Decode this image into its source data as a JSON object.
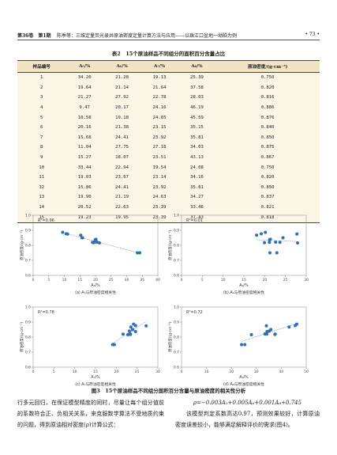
{
  "header": {
    "left": "第36卷　第1期",
    "middle": "陈季等：三维定量荧光录井原油密度定量计算方法与应用——以珠江口盆地一坳陷为例",
    "page": "• 73 •"
  },
  "table": {
    "title": "表2　15个原油样品不同组分的面积百分含量占比",
    "headers": [
      "样品编号",
      "A₅/%",
      "A₆/%",
      "A₇/%",
      "A₈/%",
      "原油密度/(g·cm⁻³)"
    ],
    "rows": [
      [
        "1",
        "34.20",
        "21.28",
        "19.13",
        "25.39",
        "0.750"
      ],
      [
        "2",
        "19.64",
        "21.14",
        "21.64",
        "37.58",
        "0.820"
      ],
      [
        "3",
        "21.27",
        "27.92",
        "22.78",
        "28.03",
        "0.816"
      ],
      [
        "4",
        "9.47",
        "20.17",
        "24.16",
        "46.19",
        "0.886"
      ],
      [
        "5",
        "10.58",
        "19.18",
        "24.65",
        "45.59",
        "0.876"
      ],
      [
        "6",
        "20.16",
        "21.38",
        "23.15",
        "35.15",
        "0.840"
      ],
      [
        "7",
        "15.68",
        "24.41",
        "23.92",
        "35.81",
        "0.850"
      ],
      [
        "8",
        "11.04",
        "27.75",
        "27.18",
        "34.03",
        "0.875"
      ],
      [
        "9",
        "15.27",
        "18.07",
        "23.51",
        "43.13",
        "0.867"
      ],
      [
        "10",
        "33.44",
        "22.94",
        "19.54",
        "24.08",
        "0.750"
      ],
      [
        "11",
        "19.03",
        "23.67",
        "23.14",
        "34.16",
        "0.820"
      ],
      [
        "12",
        "15.86",
        "24.41",
        "23.92",
        "35.81",
        "0.850"
      ],
      [
        "13",
        "19.90",
        "21.19",
        "24.63",
        "34.27",
        "0.837"
      ],
      [
        "14",
        "20.52",
        "22.63",
        "23.39",
        "33.46",
        "0.821"
      ],
      [
        "15",
        "19.23",
        "19.95",
        "23.39",
        "37.43",
        "0.818"
      ]
    ]
  },
  "chart_data": [
    {
      "type": "scatter",
      "annotation": "R²=0.96",
      "x_label": "A₅/%",
      "y_label": "原油密度/(g·cm⁻³)",
      "caption": "(a) A₅与原油密度相关性",
      "x": [
        34.2,
        19.64,
        21.27,
        9.47,
        10.58,
        20.16,
        15.68,
        11.04,
        15.27,
        33.44,
        19.03,
        15.86,
        19.9,
        20.52,
        19.23
      ],
      "values": [
        0.75,
        0.82,
        0.816,
        0.886,
        0.876,
        0.84,
        0.85,
        0.875,
        0.867,
        0.75,
        0.82,
        0.85,
        0.837,
        0.821,
        0.818
      ],
      "xlim": [
        0,
        40
      ],
      "xticks": [
        0,
        5,
        10,
        15,
        20,
        25,
        30,
        35,
        40
      ],
      "ylim": [
        0.6,
        1
      ],
      "yticks": [
        0.6,
        0.7,
        0.8,
        0.9,
        {
          "value": 1,
          "label": "1.0"
        }
      ],
      "color": "#2f6fb3",
      "trendline": true
    },
    {
      "type": "scatter",
      "annotation": "R²=0.01",
      "x_label": "A₆/%",
      "y_label": "原油密度/(g·cm⁻³)",
      "caption": "(b) A₆与原油密度相关性",
      "x": [
        21.28,
        21.14,
        27.92,
        20.17,
        19.18,
        21.38,
        24.41,
        27.75,
        18.07,
        22.94,
        23.67,
        24.41,
        21.19,
        22.63,
        19.95
      ],
      "values": [
        0.75,
        0.82,
        0.816,
        0.886,
        0.876,
        0.84,
        0.85,
        0.875,
        0.867,
        0.75,
        0.82,
        0.85,
        0.837,
        0.821,
        0.818
      ],
      "xlim": [
        0,
        30
      ],
      "xticks": [
        0,
        5,
        10,
        15,
        20,
        25,
        30
      ],
      "ylim": [
        0.6,
        1
      ],
      "yticks": [
        0.6,
        0.7,
        0.8,
        0.9,
        {
          "value": 1,
          "label": "1.0"
        }
      ],
      "color": "#2f6fb3",
      "trendline": true
    },
    {
      "type": "scatter",
      "annotation": "R²=0.78",
      "x_label": "A₇/%",
      "y_label": "原油密度/(g·cm⁻³)",
      "caption": "(c) A₇与原油密度相关性",
      "x": [
        19.13,
        21.64,
        22.78,
        24.16,
        24.65,
        23.15,
        23.92,
        27.18,
        23.51,
        19.54,
        23.14,
        23.92,
        24.63,
        23.39,
        23.39
      ],
      "values": [
        0.75,
        0.82,
        0.816,
        0.886,
        0.876,
        0.84,
        0.85,
        0.875,
        0.867,
        0.75,
        0.82,
        0.85,
        0.837,
        0.821,
        0.818
      ],
      "xlim": [
        0,
        30
      ],
      "xticks": [
        0,
        5,
        10,
        15,
        20,
        25,
        30
      ],
      "ylim": [
        0.6,
        1
      ],
      "yticks": [
        0.6,
        0.7,
        0.8,
        0.9,
        {
          "value": 1,
          "label": "1.0"
        }
      ],
      "color": "#2f6fb3",
      "trendline": true
    },
    {
      "type": "scatter",
      "annotation": "R²=0.72",
      "x_label": "A₈/%",
      "y_label": "原油密度/(g·cm⁻³)",
      "caption": "(d) A₈与原油密度相关性",
      "x": [
        25.39,
        37.58,
        28.03,
        46.19,
        45.59,
        35.15,
        35.81,
        34.03,
        43.13,
        24.08,
        34.16,
        35.81,
        34.27,
        33.46,
        37.43
      ],
      "values": [
        0.75,
        0.82,
        0.816,
        0.886,
        0.876,
        0.84,
        0.85,
        0.875,
        0.867,
        0.75,
        0.82,
        0.85,
        0.837,
        0.821,
        0.818
      ],
      "xlim": [
        0,
        50
      ],
      "xticks": [
        0,
        10,
        20,
        30,
        40,
        50
      ],
      "ylim": [
        0.6,
        1
      ],
      "yticks": [
        0.6,
        0.7,
        0.8,
        0.9,
        {
          "value": 1,
          "label": "1.0"
        }
      ],
      "color": "#2f6fb3",
      "trendline": true
    }
  ],
  "figure": {
    "caption": "图3　15个原油样品不同组分面积百分含量与原油密度的相关性分析"
  },
  "body": {
    "left": "行多元回归，在保证模型精度的同时，尽量让每个组分值前的系数符合正、负相关关系，来克服数学算法不受地质约束的问题，得到原油相对密度(ρ)计算公式：",
    "formula": "ρ=−0.003A₅+0.005A₆+0.001A₈+0.745",
    "right": "该模型判定系数高达0.97，预测效果较好，计算原油密度误差较小，能够满足解释评价的需求(图4)。"
  }
}
